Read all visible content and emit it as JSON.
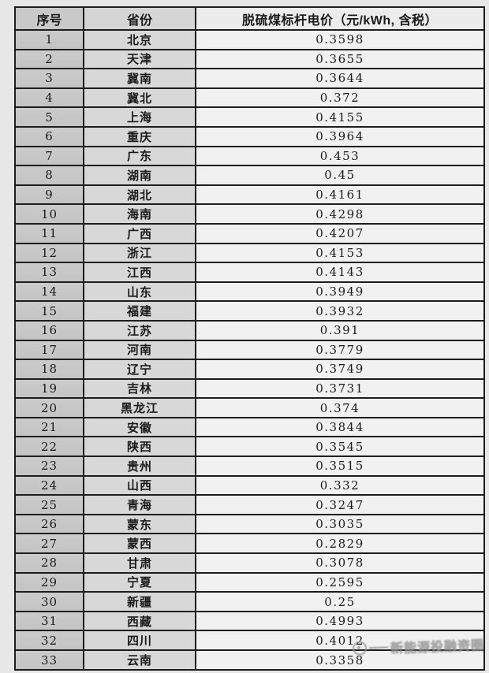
{
  "table": {
    "headers": [
      "序号",
      "省份",
      "脱硫煤标杆电价（元/kWh, 含税）"
    ],
    "rows": [
      {
        "no": "1",
        "province": "北京",
        "price": "0.3598"
      },
      {
        "no": "2",
        "province": "天津",
        "price": "0.3655"
      },
      {
        "no": "3",
        "province": "冀南",
        "price": "0.3644"
      },
      {
        "no": "4",
        "province": "冀北",
        "price": "0.372"
      },
      {
        "no": "5",
        "province": "上海",
        "price": "0.4155"
      },
      {
        "no": "6",
        "province": "重庆",
        "price": "0.3964"
      },
      {
        "no": "7",
        "province": "广东",
        "price": "0.453"
      },
      {
        "no": "8",
        "province": "湖南",
        "price": "0.45"
      },
      {
        "no": "9",
        "province": "湖北",
        "price": "0.4161"
      },
      {
        "no": "10",
        "province": "海南",
        "price": "0.4298"
      },
      {
        "no": "11",
        "province": "广西",
        "price": "0.4207"
      },
      {
        "no": "12",
        "province": "浙江",
        "price": "0.4153"
      },
      {
        "no": "13",
        "province": "江西",
        "price": "0.4143"
      },
      {
        "no": "14",
        "province": "山东",
        "price": "0.3949"
      },
      {
        "no": "15",
        "province": "福建",
        "price": "0.3932"
      },
      {
        "no": "16",
        "province": "江苏",
        "price": "0.391"
      },
      {
        "no": "17",
        "province": "河南",
        "price": "0.3779"
      },
      {
        "no": "18",
        "province": "辽宁",
        "price": "0.3749"
      },
      {
        "no": "19",
        "province": "吉林",
        "price": "0.3731"
      },
      {
        "no": "20",
        "province": "黑龙江",
        "price": "0.374"
      },
      {
        "no": "21",
        "province": "安徽",
        "price": "0.3844"
      },
      {
        "no": "22",
        "province": "陕西",
        "price": "0.3545"
      },
      {
        "no": "23",
        "province": "贵州",
        "price": "0.3515"
      },
      {
        "no": "24",
        "province": "山西",
        "price": "0.332"
      },
      {
        "no": "25",
        "province": "青海",
        "price": "0.3247"
      },
      {
        "no": "26",
        "province": "蒙东",
        "price": "0.3035"
      },
      {
        "no": "27",
        "province": "蒙西",
        "price": "0.2829"
      },
      {
        "no": "28",
        "province": "甘肃",
        "price": "0.3078"
      },
      {
        "no": "29",
        "province": "宁夏",
        "price": "0.2595"
      },
      {
        "no": "30",
        "province": "新疆",
        "price": "0.25"
      },
      {
        "no": "31",
        "province": "西藏",
        "price": "0.4993"
      },
      {
        "no": "32",
        "province": "四川",
        "price": "0.4012"
      },
      {
        "no": "33",
        "province": "云南",
        "price": "0.3358"
      }
    ]
  },
  "watermark": {
    "text": "新能源投融资圈"
  },
  "colors": {
    "page_bg": "#e7e7e7",
    "border": "#1d1d1d",
    "text": "#1a1a1a",
    "header1_bg": "#c9c9c9",
    "header2_bg": "#d5d5d5",
    "header3_bg": "#ececec",
    "col1_bg": "#c4c4c4",
    "col2_bg": "#d8d8d8",
    "col3_bg": "#f1f1f1",
    "watermark": "#929292"
  },
  "chart_data": {
    "type": "table",
    "title": "脱硫煤标杆电价（元/kWh, 含税）",
    "columns": [
      "序号",
      "省份",
      "脱硫煤标杆电价（元/kWh, 含税）"
    ],
    "rows": [
      [
        1,
        "北京",
        0.3598
      ],
      [
        2,
        "天津",
        0.3655
      ],
      [
        3,
        "冀南",
        0.3644
      ],
      [
        4,
        "冀北",
        0.372
      ],
      [
        5,
        "上海",
        0.4155
      ],
      [
        6,
        "重庆",
        0.3964
      ],
      [
        7,
        "广东",
        0.453
      ],
      [
        8,
        "湖南",
        0.45
      ],
      [
        9,
        "湖北",
        0.4161
      ],
      [
        10,
        "海南",
        0.4298
      ],
      [
        11,
        "广西",
        0.4207
      ],
      [
        12,
        "浙江",
        0.4153
      ],
      [
        13,
        "江西",
        0.4143
      ],
      [
        14,
        "山东",
        0.3949
      ],
      [
        15,
        "福建",
        0.3932
      ],
      [
        16,
        "江苏",
        0.391
      ],
      [
        17,
        "河南",
        0.3779
      ],
      [
        18,
        "辽宁",
        0.3749
      ],
      [
        19,
        "吉林",
        0.3731
      ],
      [
        20,
        "黑龙江",
        0.374
      ],
      [
        21,
        "安徽",
        0.3844
      ],
      [
        22,
        "陕西",
        0.3545
      ],
      [
        23,
        "贵州",
        0.3515
      ],
      [
        24,
        "山西",
        0.332
      ],
      [
        25,
        "青海",
        0.3247
      ],
      [
        26,
        "蒙东",
        0.3035
      ],
      [
        27,
        "蒙西",
        0.2829
      ],
      [
        28,
        "甘肃",
        0.3078
      ],
      [
        29,
        "宁夏",
        0.2595
      ],
      [
        30,
        "新疆",
        0.25
      ],
      [
        31,
        "西藏",
        0.4993
      ],
      [
        32,
        "四川",
        0.4012
      ],
      [
        33,
        "云南",
        0.3358
      ]
    ]
  }
}
